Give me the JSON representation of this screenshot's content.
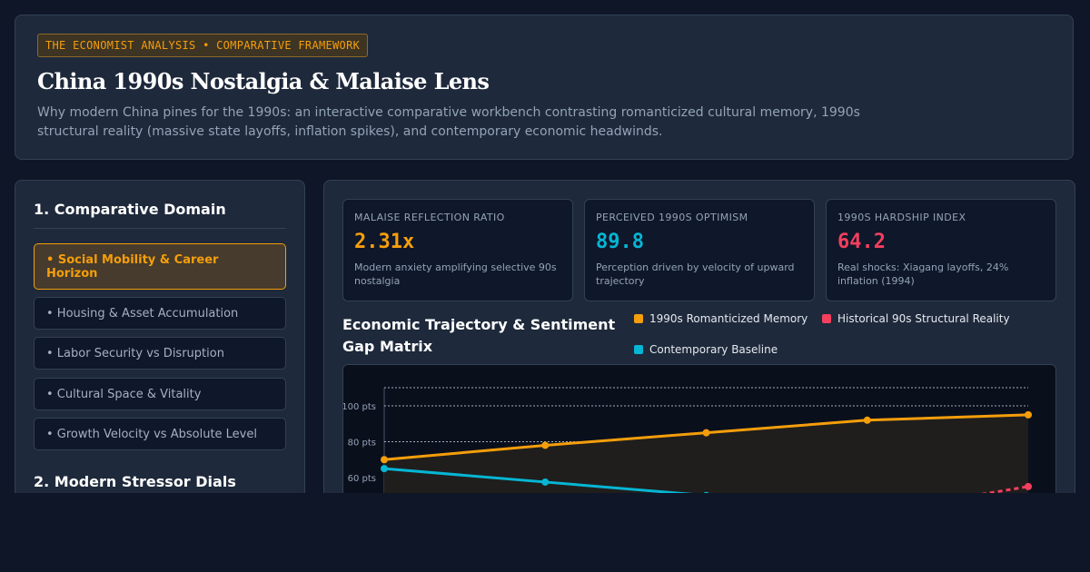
{
  "header": {
    "badge": "THE ECONOMIST ANALYSIS • COMPARATIVE FRAMEWORK",
    "title": "China 1990s Nostalgia & Malaise Lens",
    "subtitle": "Why modern China pines for the 1990s: an interactive comparative workbench contrasting romanticized cultural memory, 1990s structural reality (massive state layoffs, inflation spikes), and contemporary economic headwinds."
  },
  "sidebar": {
    "section1_title": "1. Comparative Domain",
    "domains": [
      {
        "label": "• Social Mobility & Career Horizon",
        "active": true
      },
      {
        "label": "• Housing & Asset Accumulation",
        "active": false
      },
      {
        "label": "• Labor Security vs Disruption",
        "active": false
      },
      {
        "label": "• Cultural Space & Vitality",
        "active": false
      },
      {
        "label": "• Growth Velocity vs Absolute Level",
        "active": false
      }
    ],
    "section2_title": "2. Modern Stressor Dials"
  },
  "kpis": [
    {
      "label": "MALAISE REFLECTION RATIO",
      "value": "2.31x",
      "desc": "Modern anxiety amplifying selective 90s nostalgia",
      "color": "#f59e0b"
    },
    {
      "label": "PERCEIVED 1990S OPTIMISM",
      "value": "89.8",
      "desc": "Perception driven by velocity of upward trajectory",
      "color": "#06b6d4"
    },
    {
      "label": "1990S HARDSHIP INDEX",
      "value": "64.2",
      "desc": "Real shocks: Xiagang layoffs, 24% inflation (1994)",
      "color": "#f43f5e"
    }
  ],
  "chart_section": {
    "title": "Economic Trajectory & Sentiment Gap Matrix"
  },
  "chart_data": {
    "type": "line",
    "y_ticks": [
      "100 pts",
      "80 pts",
      "60 pts"
    ],
    "ylim_visible": [
      60,
      110
    ],
    "grid": true,
    "legend_position": "top-right",
    "series": [
      {
        "name": "1990s Romanticized Memory",
        "color": "#f59e0b",
        "values": [
          70,
          78,
          85,
          92,
          95
        ],
        "fill": true,
        "dashed": false
      },
      {
        "name": "Historical 90s Structural Reality",
        "color": "#f43f5e",
        "values": [
          null,
          null,
          null,
          null,
          55
        ],
        "fill": false,
        "dashed": true
      },
      {
        "name": "Contemporary Baseline",
        "color": "#06b6d4",
        "values": [
          65,
          57.5,
          50,
          null,
          null
        ],
        "fill": false,
        "dashed": false
      }
    ]
  }
}
